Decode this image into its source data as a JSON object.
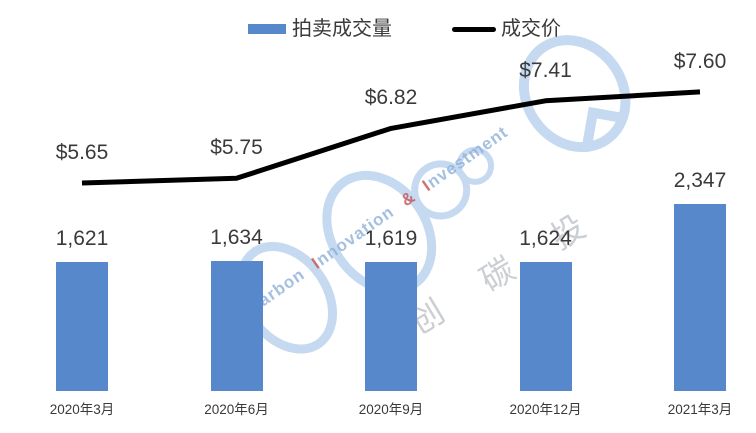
{
  "chart_data": {
    "type": "bar+line",
    "title": "",
    "categories": [
      "2020年3月",
      "2020年6月",
      "2020年9月",
      "2020年12月",
      "2021年3月"
    ],
    "series": [
      {
        "name": "拍卖成交量",
        "chart_type": "bar",
        "values": [
          1621,
          1634,
          1619,
          1624,
          2347
        ],
        "value_labels": [
          "1,621",
          "1,634",
          "1,619",
          "1,624",
          "2,347"
        ],
        "color": "#5688CB"
      },
      {
        "name": "成交价",
        "chart_type": "line",
        "values": [
          5.65,
          5.75,
          6.82,
          7.41,
          7.6
        ],
        "value_labels": [
          "$5.65",
          "$5.75",
          "$6.82",
          "$7.41",
          "$7.60"
        ],
        "color": "#000000"
      }
    ],
    "legend_position": "top-center",
    "grid": false,
    "axes": {
      "x_labels_visible": true,
      "y_axis_visible": false,
      "data_labels_visible": true
    }
  },
  "watermark": {
    "prefix": "o",
    "words": [
      "Carbon",
      "Innovation",
      "Investment"
    ],
    "separator": "&",
    "cjk": "创碳投",
    "ring_color": "#B7D0ED",
    "text_color": "#8FB0D9",
    "accent_color": "#C4524E"
  },
  "colors": {
    "background": "#FFFFFF",
    "bar": "#5688CB",
    "line": "#000000",
    "label_text": "#3A3A3A"
  }
}
